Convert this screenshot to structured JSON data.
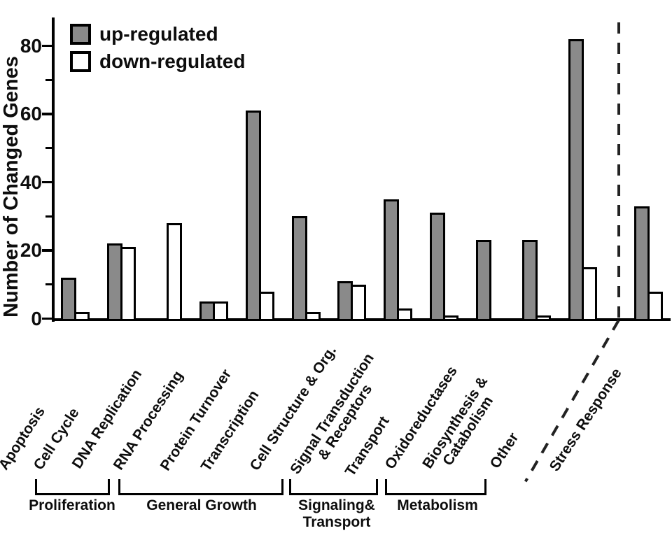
{
  "chart_data": {
    "type": "bar",
    "title": "",
    "ylabel": "Number of Changed Genes",
    "xlabel": "",
    "ylim": [
      0,
      88
    ],
    "yticks": [
      0,
      20,
      40,
      60,
      80
    ],
    "minor_yticks": [
      10,
      30,
      50,
      70
    ],
    "grid": false,
    "legend_position": "top-left",
    "legend": [
      {
        "name": "up-regulated",
        "fill": "#8a8a8a"
      },
      {
        "name": "down-regulated",
        "fill": "#ffffff"
      }
    ],
    "categories": [
      "Apoptosis",
      "Cell Cycle",
      "DNA Replication",
      "RNA Processing",
      "Protein Turnover",
      "Transcription",
      "Cell Structure & Org.",
      "Signal Transduction\n& Receptors",
      "Transport",
      "Oxidoreductases",
      "Biosynthesis &\nCatabolism",
      "Other",
      "Stress Response"
    ],
    "series": [
      {
        "name": "up-regulated",
        "values": [
          12,
          22,
          0,
          5,
          61,
          30,
          11,
          35,
          31,
          23,
          23,
          82,
          33
        ]
      },
      {
        "name": "down-regulated",
        "values": [
          2,
          21,
          28,
          5,
          8,
          2,
          10,
          3,
          1,
          0,
          1,
          15,
          8
        ]
      }
    ],
    "groups": [
      {
        "label": "Proliferation",
        "span": [
          "Apoptosis",
          "DNA Replication"
        ]
      },
      {
        "label": "General Growth",
        "span": [
          "RNA Processing",
          "Cell Structure & Org."
        ]
      },
      {
        "label": "Signaling&\nTransport",
        "span": [
          "Signal Transduction\n& Receptors",
          "Transport"
        ]
      },
      {
        "label": "Metabolism",
        "span": [
          "Oxidoreductases",
          "Biosynthesis &\nCatabolism"
        ]
      }
    ],
    "separator": {
      "style": "dashed",
      "between": [
        "Other",
        "Stress Response"
      ]
    },
    "colors": {
      "bar_fill_up": "#8a8a8a",
      "bar_fill_down": "#ffffff",
      "outline": "#000000",
      "axis": "#000000"
    }
  }
}
